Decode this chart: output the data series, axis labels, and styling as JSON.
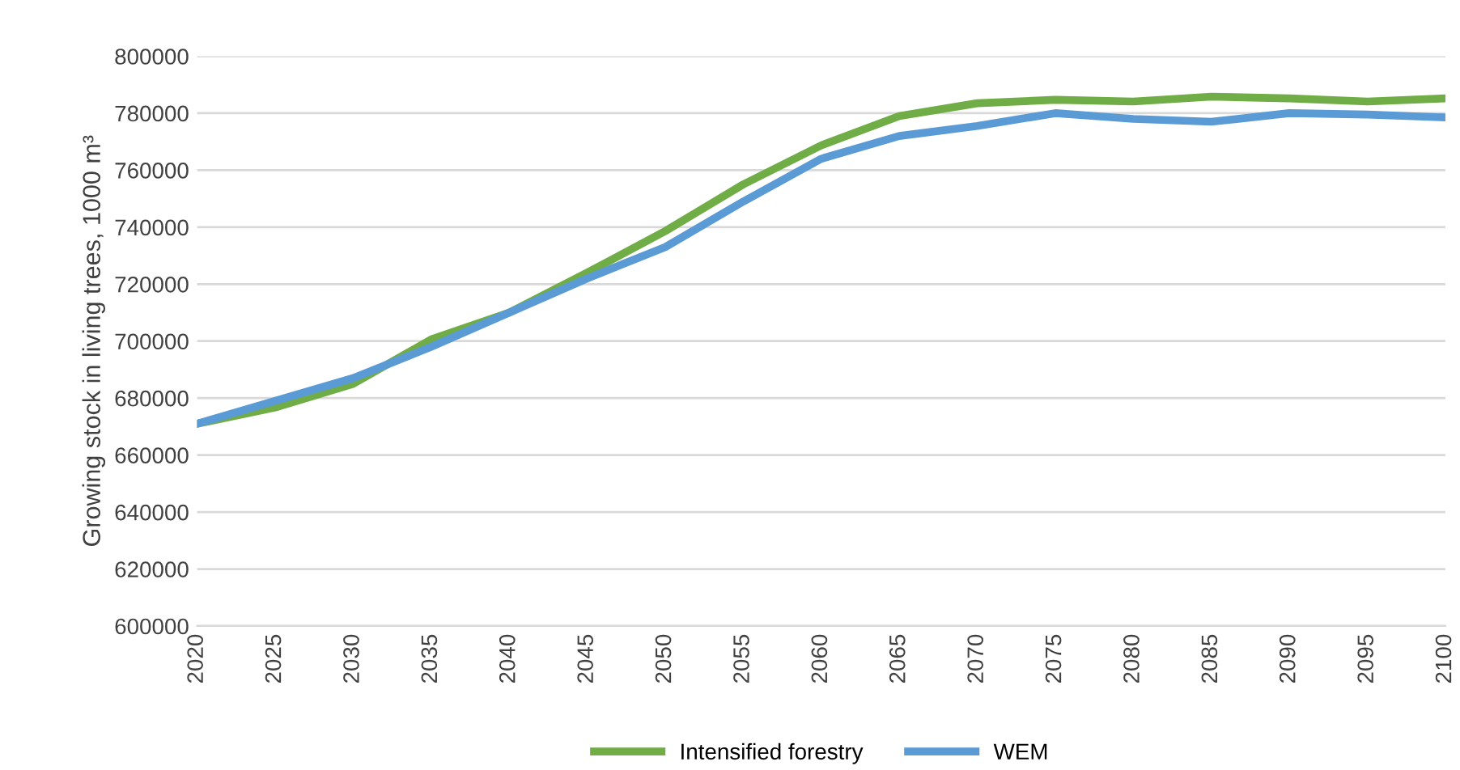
{
  "chart_data": {
    "type": "line",
    "ylabel": "Growing stock in living trees, 1000 m³",
    "x": [
      2020,
      2025,
      2030,
      2035,
      2040,
      2045,
      2050,
      2055,
      2060,
      2065,
      2070,
      2075,
      2080,
      2085,
      2090,
      2095,
      2100
    ],
    "series": [
      {
        "name": "Intensified forestry",
        "color": "#70ad47",
        "values": [
          671000,
          676700,
          685000,
          700600,
          710000,
          724000,
          738600,
          755000,
          768700,
          779000,
          783500,
          784700,
          784100,
          785800,
          785200,
          784100,
          785200
        ]
      },
      {
        "name": "WEM",
        "color": "#5b9bd5",
        "values": [
          671000,
          679000,
          687000,
          698000,
          710000,
          722000,
          733000,
          749000,
          764000,
          772000,
          775500,
          780000,
          778000,
          777000,
          780000,
          779500,
          778500
        ]
      }
    ],
    "xlim": [
      2020,
      2100
    ],
    "xticks": [
      2020,
      2025,
      2030,
      2035,
      2040,
      2045,
      2050,
      2055,
      2060,
      2065,
      2070,
      2075,
      2080,
      2085,
      2090,
      2095,
      2100
    ],
    "ylim": [
      600000,
      800000
    ],
    "yticks": [
      600000,
      620000,
      640000,
      660000,
      680000,
      700000,
      720000,
      740000,
      760000,
      780000,
      800000
    ],
    "grid": "y",
    "legend": "bottom",
    "marker": "none",
    "line_style": "solid"
  }
}
